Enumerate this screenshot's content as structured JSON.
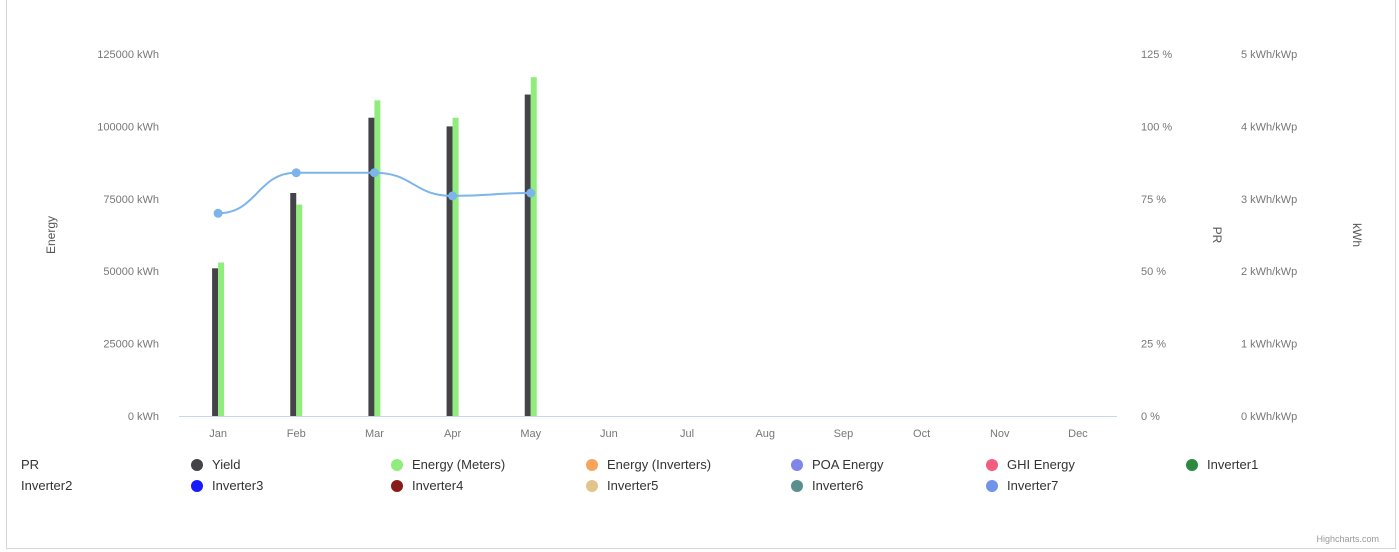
{
  "chart_data": {
    "type": "bar",
    "categories": [
      "Jan",
      "Feb",
      "Mar",
      "Apr",
      "May",
      "Jun",
      "Jul",
      "Aug",
      "Sep",
      "Oct",
      "Nov",
      "Dec"
    ],
    "series": [
      {
        "name": "Yield",
        "type": "bar",
        "axis": "energy",
        "color": "#434348",
        "values": [
          51000,
          77000,
          103000,
          100000,
          111000,
          null,
          null,
          null,
          null,
          null,
          null,
          null
        ]
      },
      {
        "name": "Energy (Meters)",
        "type": "bar",
        "axis": "energy",
        "color": "#90ed7d",
        "values": [
          53000,
          73000,
          109000,
          103000,
          117000,
          null,
          null,
          null,
          null,
          null,
          null,
          null
        ]
      },
      {
        "name": "PR",
        "type": "line",
        "axis": "pr",
        "color": "#7cb5ec",
        "values": [
          70,
          84,
          84,
          76,
          77,
          null,
          null,
          null,
          null,
          null,
          null,
          null
        ]
      }
    ],
    "ylabel": "Energy",
    "y2label": "PR",
    "y3label": "kWh",
    "ylim": [
      0,
      125000
    ],
    "y2lim": [
      0,
      125
    ],
    "energy_ticks": [
      "0 kWh",
      "25000 kWh",
      "50000 kWh",
      "75000 kWh",
      "100000 kWh",
      "125000 kWh"
    ],
    "pr_ticks": [
      "0 %",
      "25 %",
      "50 %",
      "75 %",
      "100 %",
      "125 %"
    ],
    "specific_ticks": [
      "0 kWh/kWp",
      "1 kWh/kWp",
      "2 kWh/kWp",
      "3 kWh/kWp",
      "4 kWh/kWp",
      "5 kWh/kWp"
    ],
    "legend": {
      "placement": "bottom",
      "rows": [
        [
          {
            "label": "PR",
            "color": null
          },
          {
            "label": "Yield",
            "color": "#434348"
          },
          {
            "label": "Energy (Meters)",
            "color": "#90ed7d"
          },
          {
            "label": "Energy (Inverters)",
            "color": "#f7a35c"
          },
          {
            "label": "POA Energy",
            "color": "#8085e9"
          },
          {
            "label": "GHI Energy",
            "color": "#f15c80"
          },
          {
            "label": "Inverter1",
            "color": "#2b8a3e"
          }
        ],
        [
          {
            "label": "Inverter2",
            "color": null
          },
          {
            "label": "Inverter3",
            "color": "#1a1aff"
          },
          {
            "label": "Inverter4",
            "color": "#8b1a1a"
          },
          {
            "label": "Inverter5",
            "color": "#e4c48d"
          },
          {
            "label": "Inverter6",
            "color": "#5b8f8f"
          },
          {
            "label": "Inverter7",
            "color": "#6f94e8"
          }
        ]
      ]
    }
  },
  "credits": "Highcharts.com"
}
